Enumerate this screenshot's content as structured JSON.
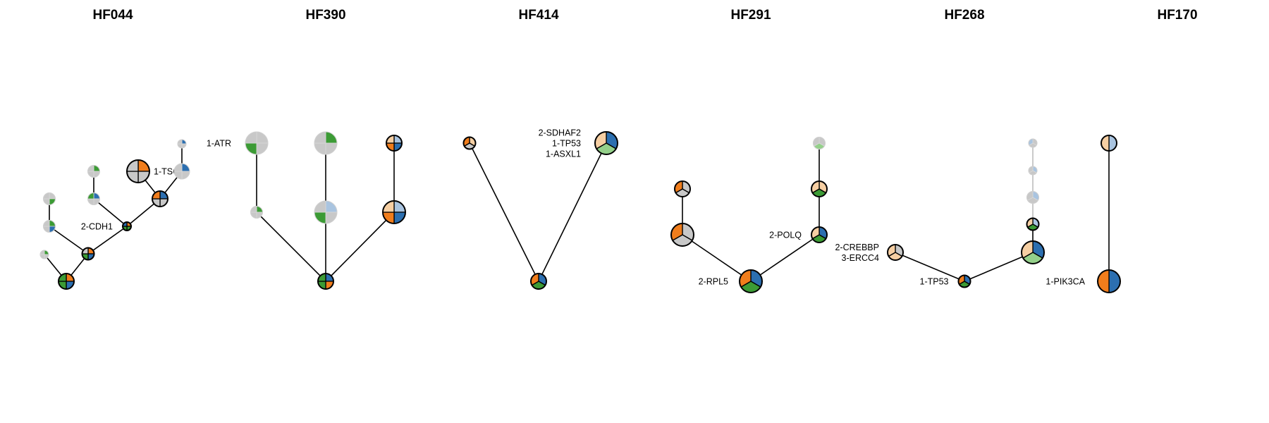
{
  "colors": {
    "orange": "#f07d1c",
    "blue": "#2c6fb0",
    "green": "#3c9b35",
    "light_orange": "#f6cfa3",
    "light_blue": "#a9c4e0",
    "light_green": "#94d08a",
    "grey": "#c8c8c8",
    "edge": "#000000",
    "edge_faint": "#bdbdbd"
  },
  "panels": [
    {
      "title": "HF044",
      "nodes": [
        {
          "id": "r",
          "label": "",
          "slices": [
            "orange",
            "blue",
            "green",
            "green"
          ],
          "style": "full",
          "size": "medium"
        },
        {
          "id": "a",
          "label": "",
          "slices": [
            "green",
            "grey",
            "grey",
            "grey"
          ],
          "style": "faded",
          "size": "tiny"
        },
        {
          "id": "b",
          "label": "",
          "slices": [
            "orange",
            "blue",
            "green",
            "grey"
          ],
          "style": "full",
          "size": "small"
        },
        {
          "id": "c",
          "label": "",
          "slices": [
            "green",
            "blue",
            "grey",
            "grey"
          ],
          "style": "faded",
          "size": "small"
        },
        {
          "id": "d",
          "label": "",
          "slices": [
            "grey",
            "green",
            "grey",
            "grey"
          ],
          "style": "faded",
          "size": "small"
        },
        {
          "id": "e",
          "label": "2-CDH1",
          "slices": [
            "orange",
            "green",
            "green",
            "blue"
          ],
          "style": "full",
          "size": "tiny"
        },
        {
          "id": "f",
          "label": "",
          "slices": [
            "blue",
            "grey",
            "grey",
            "green"
          ],
          "style": "faded",
          "size": "small"
        },
        {
          "id": "g",
          "label": "",
          "slices": [
            "green",
            "grey",
            "grey",
            "grey"
          ],
          "style": "faded",
          "size": "small"
        },
        {
          "id": "h",
          "label": "",
          "slices": [
            "blue",
            "grey",
            "grey",
            "orange"
          ],
          "style": "full",
          "size": "medium"
        },
        {
          "id": "i",
          "label": "1-TSC1",
          "slices": [
            "orange",
            "grey",
            "grey",
            "grey"
          ],
          "style": "full",
          "size": "large"
        },
        {
          "id": "j",
          "label": "",
          "slices": [
            "blue",
            "grey",
            "grey",
            "grey"
          ],
          "style": "faded",
          "size": "medium"
        },
        {
          "id": "k",
          "label": "",
          "slices": [
            "blue",
            "grey",
            "grey",
            "grey"
          ],
          "style": "faded",
          "size": "tiny"
        }
      ],
      "edges": [
        [
          "r",
          "a"
        ],
        [
          "r",
          "b"
        ],
        [
          "b",
          "c"
        ],
        [
          "c",
          "d"
        ],
        [
          "b",
          "e"
        ],
        [
          "e",
          "f"
        ],
        [
          "f",
          "g"
        ],
        [
          "e",
          "h"
        ],
        [
          "h",
          "i"
        ],
        [
          "h",
          "j"
        ],
        [
          "j",
          "k"
        ]
      ]
    },
    {
      "title": "HF390",
      "nodes": [
        {
          "id": "r",
          "label": "",
          "slices": [
            "blue",
            "orange",
            "green",
            "green"
          ],
          "style": "full",
          "size": "medium"
        },
        {
          "id": "a",
          "label": "",
          "slices": [
            "green",
            "grey",
            "grey",
            "grey"
          ],
          "style": "faded",
          "size": "small"
        },
        {
          "id": "b",
          "label": "1-ATR",
          "slices": [
            "grey",
            "grey",
            "green",
            "grey"
          ],
          "style": "faded",
          "size": "large"
        },
        {
          "id": "c",
          "label": "",
          "slices": [
            "light_blue",
            "grey",
            "green",
            "grey"
          ],
          "style": "faded",
          "size": "large"
        },
        {
          "id": "d",
          "label": "",
          "slices": [
            "green",
            "grey",
            "grey",
            "grey"
          ],
          "style": "faded",
          "size": "large"
        },
        {
          "id": "e",
          "label": "",
          "slices": [
            "light_blue",
            "blue",
            "orange",
            "light_orange"
          ],
          "style": "full",
          "size": "large"
        },
        {
          "id": "f",
          "label": "",
          "slices": [
            "light_blue",
            "blue",
            "orange",
            "light_orange"
          ],
          "style": "full",
          "size": "medium"
        }
      ],
      "edges": [
        [
          "r",
          "a"
        ],
        [
          "a",
          "b"
        ],
        [
          "r",
          "c"
        ],
        [
          "c",
          "d"
        ],
        [
          "r",
          "e"
        ],
        [
          "e",
          "f"
        ]
      ]
    },
    {
      "title": "HF414",
      "nodes": [
        {
          "id": "r",
          "label": "",
          "slices": [
            "blue",
            "green",
            "orange"
          ],
          "style": "full",
          "size": "medium"
        },
        {
          "id": "a",
          "label": "",
          "slices": [
            "light_orange",
            "grey",
            "orange"
          ],
          "style": "full",
          "size": "small"
        },
        {
          "id": "b",
          "label": "2-SDHAF2",
          "label2": "1-TP53",
          "label3": "1-ASXL1",
          "slices": [
            "blue",
            "light_green",
            "light_orange"
          ],
          "style": "full",
          "size": "large"
        }
      ],
      "edges": [
        [
          "r",
          "a"
        ],
        [
          "r",
          "b"
        ]
      ]
    },
    {
      "title": "HF291",
      "nodes": [
        {
          "id": "r",
          "label": "2-RPL5",
          "slices": [
            "blue",
            "green",
            "orange"
          ],
          "style": "full",
          "size": "large"
        },
        {
          "id": "a",
          "label": "",
          "slices": [
            "grey",
            "grey",
            "orange"
          ],
          "style": "full",
          "size": "large"
        },
        {
          "id": "b",
          "label": "",
          "slices": [
            "grey",
            "grey",
            "orange"
          ],
          "style": "full",
          "size": "medium"
        },
        {
          "id": "c",
          "label": "2-POLQ",
          "slices": [
            "blue",
            "green",
            "light_orange"
          ],
          "style": "full",
          "size": "medium"
        },
        {
          "id": "d",
          "label": "",
          "slices": [
            "light_orange",
            "green",
            "light_orange"
          ],
          "style": "full",
          "size": "medium"
        },
        {
          "id": "e",
          "label": "",
          "slices": [
            "grey",
            "light_green",
            "grey"
          ],
          "style": "faded",
          "size": "small"
        }
      ],
      "edges": [
        [
          "r",
          "a"
        ],
        [
          "a",
          "b"
        ],
        [
          "r",
          "c"
        ],
        [
          "c",
          "d"
        ],
        [
          "d",
          "e"
        ]
      ]
    },
    {
      "title": "HF268",
      "nodes": [
        {
          "id": "r",
          "label": "1-TP53",
          "slices": [
            "blue",
            "green",
            "orange"
          ],
          "style": "full",
          "size": "small"
        },
        {
          "id": "a",
          "label": "2-CREBBP",
          "label2": "3-ERCC4",
          "slices": [
            "grey",
            "light_orange",
            "light_orange"
          ],
          "style": "full",
          "size": "medium"
        },
        {
          "id": "b",
          "label": "",
          "slices": [
            "blue",
            "light_green",
            "light_orange"
          ],
          "style": "full",
          "size": "large"
        },
        {
          "id": "c",
          "label": "",
          "slices": [
            "light_blue",
            "green",
            "light_orange"
          ],
          "style": "full",
          "size": "small"
        },
        {
          "id": "d",
          "label": "",
          "slices": [
            "light_blue",
            "grey",
            "grey"
          ],
          "style": "faded",
          "size": "small"
        },
        {
          "id": "e",
          "label": "",
          "slices": [
            "light_blue",
            "grey",
            "grey"
          ],
          "style": "faded",
          "size": "tiny"
        },
        {
          "id": "f",
          "label": "",
          "slices": [
            "grey",
            "grey",
            "light_blue"
          ],
          "style": "faded",
          "size": "tiny"
        }
      ],
      "edges": [
        [
          "r",
          "a"
        ],
        [
          "r",
          "b"
        ],
        [
          "b",
          "c"
        ],
        [
          "c",
          "d",
          "faint"
        ],
        [
          "d",
          "e",
          "faint"
        ],
        [
          "e",
          "f",
          "faint"
        ]
      ]
    },
    {
      "title": "HF170",
      "nodes": [
        {
          "id": "r",
          "label": "1-PIK3CA",
          "slices": [
            "blue",
            "orange"
          ],
          "style": "full",
          "size": "large"
        },
        {
          "id": "a",
          "label": "",
          "slices": [
            "light_blue",
            "light_orange"
          ],
          "style": "full",
          "size": "medium"
        }
      ],
      "edges": [
        [
          "r",
          "a"
        ]
      ]
    }
  ]
}
